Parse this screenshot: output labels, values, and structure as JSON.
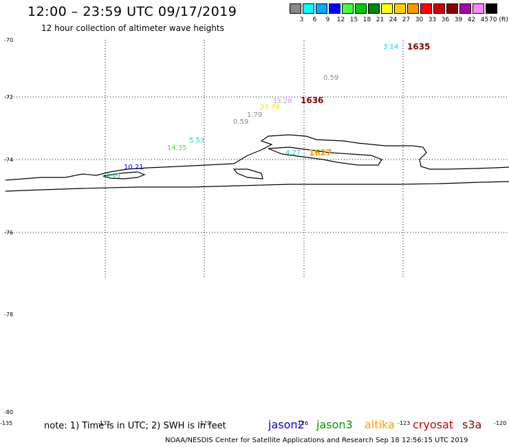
{
  "header": {
    "title": "12:00 – 23:59 UTC 09/17/2019",
    "subtitle": "12 hour collection of altimeter wave heights"
  },
  "legend": {
    "unit": "70 (ft)",
    "bins": [
      {
        "label": "3",
        "color": "#888888"
      },
      {
        "label": "6",
        "color": "#00ffff"
      },
      {
        "label": "9",
        "color": "#00aaff"
      },
      {
        "label": "12",
        "color": "#0000ff"
      },
      {
        "label": "15",
        "color": "#44ff44"
      },
      {
        "label": "18",
        "color": "#00cc00"
      },
      {
        "label": "21",
        "color": "#008800"
      },
      {
        "label": "24",
        "color": "#ffff00"
      },
      {
        "label": "27",
        "color": "#ffcc00"
      },
      {
        "label": "30",
        "color": "#ff9900"
      },
      {
        "label": "33",
        "color": "#ff0000"
      },
      {
        "label": "36",
        "color": "#cc0000"
      },
      {
        "label": "39",
        "color": "#880000"
      },
      {
        "label": "42",
        "color": "#aa00aa"
      },
      {
        "label": "45",
        "color": "#ff88ff"
      },
      {
        "label": "",
        "color": "#000000"
      }
    ]
  },
  "map": {
    "lat_labels": [
      "-70",
      "-72",
      "-74",
      "-76",
      "-78",
      "-80"
    ],
    "lon_labels": [
      "-135",
      "-132",
      "-129",
      "-126",
      "-123",
      "-120"
    ],
    "observations": [
      {
        "text": "3.14",
        "color": "#22cccc"
      },
      {
        "text": "1635",
        "color": "#880000",
        "kind": "id"
      },
      {
        "text": "0.59",
        "color": "#888888"
      },
      {
        "text": "33.28",
        "color": "#bb99ff"
      },
      {
        "text": "1636",
        "color": "#880000",
        "kind": "id"
      },
      {
        "text": "23.76",
        "color": "#eedd00"
      },
      {
        "text": "1.79",
        "color": "#888888"
      },
      {
        "text": "0.59",
        "color": "#888888"
      },
      {
        "text": "5.53",
        "color": "#22cccc"
      },
      {
        "text": "14.35",
        "color": "#44dd44"
      },
      {
        "text": "4.27",
        "color": "#22cccc"
      },
      {
        "text": "1627",
        "color": "#ff9900",
        "kind": "id"
      },
      {
        "text": "10.21",
        "color": "#0000cc"
      },
      {
        "text": "4.99",
        "color": "#22cccc"
      }
    ]
  },
  "footer": {
    "note": "note: 1) Time is in UTC; 2) SWH is in feet",
    "satellites": [
      {
        "name": "jason2",
        "color": "#0000cc"
      },
      {
        "name": "jason3",
        "color": "#009900"
      },
      {
        "name": "altika",
        "color": "#ff9900"
      },
      {
        "name": "cryosat",
        "color": "#cc0000"
      },
      {
        "name": "s3a",
        "color": "#880000"
      }
    ],
    "credit": "NOAA/NESDIS Center for Satellite Applications and Research   Sep 18 12:56:15 UTC 2019"
  }
}
